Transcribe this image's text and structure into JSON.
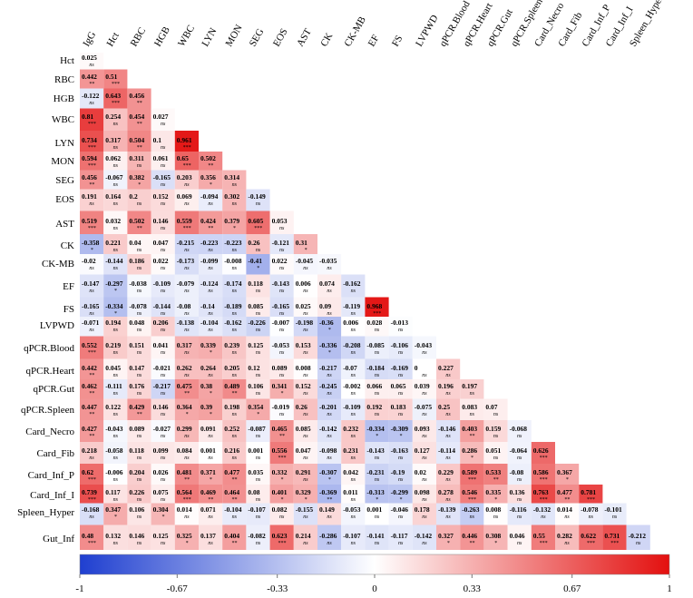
{
  "chart_data": {
    "type": "heatmap",
    "title": "",
    "columns": [
      "IgG",
      "Hct",
      "RBC",
      "HGB",
      "WBC",
      "LYN",
      "MON",
      "SEG",
      "EOS",
      "AST",
      "CK",
      "CK-MB",
      "EF",
      "FS",
      "LVPWD",
      "qPCR.Blood",
      "qPCR.Heart",
      "qPCR.Gut",
      "qPCR.Spleen",
      "Card_Necro",
      "Card_Fib",
      "Card_Inf_P",
      "Card_Inf_I",
      "Spleen_Hyper"
    ],
    "rows": [
      "Hct",
      "RBC",
      "HGB",
      "WBC",
      "LYN",
      "MON",
      "SEG",
      "EOS",
      "AST",
      "CK",
      "CK-MB",
      "EF",
      "FS",
      "LVPWD",
      "qPCR.Blood",
      "qPCR.Heart",
      "qPCR.Gut",
      "qPCR.Spleen",
      "Card_Necro",
      "Card_Fib",
      "Card_Inf_P",
      "Card_Inf_I",
      "Spleen_Hyper",
      "Gut_Inf"
    ],
    "values": [
      [
        0.025
      ],
      [
        0.442,
        0.51
      ],
      [
        -0.122,
        0.643,
        0.456
      ],
      [
        0.81,
        0.254,
        0.454,
        0.027
      ],
      [
        0.734,
        0.317,
        0.504,
        0.1,
        0.961
      ],
      [
        0.594,
        0.062,
        0.311,
        0.061,
        0.65,
        0.502
      ],
      [
        0.456,
        -0.067,
        0.382,
        -0.165,
        0.203,
        0.356,
        0.314
      ],
      [
        0.191,
        0.164,
        0.2,
        0.152,
        0.069,
        -0.094,
        0.302,
        -0.149
      ],
      [
        0.519,
        0.032,
        0.502,
        0.146,
        0.559,
        0.424,
        0.379,
        0.605,
        0.053
      ],
      [
        -0.358,
        0.221,
        0.04,
        0.047,
        -0.215,
        -0.223,
        -0.223,
        0.26,
        -0.121,
        0.31
      ],
      [
        -0.02,
        -0.144,
        0.186,
        0.022,
        -0.173,
        -0.099,
        -0.008,
        -0.41,
        0.022,
        -0.045,
        -0.035
      ],
      [
        -0.147,
        -0.297,
        -0.038,
        -0.109,
        -0.079,
        -0.124,
        -0.174,
        0.118,
        -0.143,
        0.006,
        0.074,
        -0.162
      ],
      [
        -0.165,
        -0.334,
        -0.078,
        -0.144,
        -0.08,
        -0.14,
        -0.189,
        0.085,
        -0.165,
        0.025,
        0.09,
        -0.119,
        0.968
      ],
      [
        -0.071,
        0.194,
        0.048,
        0.206,
        -0.138,
        -0.104,
        -0.162,
        -0.226,
        -0.007,
        -0.198,
        -0.36,
        0.006,
        0.028,
        -0.013
      ],
      [
        0.552,
        0.219,
        0.151,
        0.041,
        0.317,
        0.339,
        0.239,
        0.125,
        -0.053,
        0.153,
        -0.336,
        -0.208,
        -0.085,
        -0.106,
        -0.043
      ],
      [
        0.442,
        0.045,
        0.147,
        -0.021,
        0.262,
        0.264,
        0.205,
        0.12,
        0.089,
        0.008,
        -0.217,
        -0.07,
        -0.184,
        -0.169,
        0,
        0.227
      ],
      [
        0.462,
        -0.111,
        0.176,
        -0.217,
        0.475,
        0.38,
        0.489,
        0.106,
        0.341,
        0.152,
        -0.245,
        -0.002,
        0.066,
        0.065,
        0.039,
        0.196,
        0.197
      ],
      [
        0.447,
        0.122,
        0.429,
        0.146,
        0.364,
        0.39,
        0.198,
        0.354,
        -0.019,
        0.26,
        -0.201,
        -0.109,
        0.192,
        0.183,
        -0.075,
        0.25,
        0.083,
        0.07
      ],
      [
        0.427,
        -0.043,
        0.089,
        -0.027,
        0.299,
        0.091,
        0.252,
        -0.087,
        0.465,
        0.085,
        -0.142,
        0.232,
        -0.334,
        -0.309,
        0.093,
        -0.146,
        0.403,
        0.159,
        -0.068
      ],
      [
        0.218,
        -0.058,
        0.118,
        0.099,
        0.084,
        0.001,
        0.216,
        0.001,
        0.556,
        0.047,
        -0.098,
        0.231,
        -0.143,
        -0.163,
        0.127,
        -0.114,
        0.286,
        0.051,
        -0.064,
        0.626
      ],
      [
        0.62,
        -0.006,
        0.204,
        0.026,
        0.481,
        0.371,
        0.477,
        0.035,
        0.332,
        0.291,
        -0.307,
        0.042,
        -0.231,
        -0.19,
        0.02,
        0.229,
        0.589,
        0.533,
        -0.08,
        0.586,
        0.367
      ],
      [
        0.739,
        0.117,
        0.226,
        0.075,
        0.564,
        0.469,
        0.464,
        0.08,
        0.401,
        0.329,
        -0.369,
        0.011,
        -0.313,
        -0.299,
        0.098,
        0.278,
        0.546,
        0.335,
        0.136,
        0.763,
        0.477,
        0.781
      ],
      [
        -0.168,
        0.347,
        0.106,
        0.304,
        0.014,
        0.071,
        -0.104,
        -0.107,
        0.082,
        -0.155,
        0.149,
        -0.053,
        0.001,
        -0.046,
        0.178,
        -0.139,
        -0.263,
        0.008,
        -0.116,
        -0.132,
        0.014,
        -0.078,
        -0.101
      ],
      [
        0.48,
        0.132,
        0.146,
        0.125,
        0.325,
        0.137,
        0.404,
        -0.082,
        0.623,
        0.214,
        -0.286,
        -0.107,
        -0.141,
        -0.117,
        -0.142,
        0.327,
        0.446,
        0.308,
        0.046,
        0.55,
        0.282,
        0.622,
        0.731,
        -0.212
      ]
    ],
    "significance": [
      [
        "ns"
      ],
      [
        "**",
        "***"
      ],
      [
        "ns",
        "***",
        "**"
      ],
      [
        "***",
        "ns",
        "**",
        "ns"
      ],
      [
        "***",
        "ns",
        "**",
        "ns",
        "***"
      ],
      [
        "***",
        "ns",
        "ns",
        "ns",
        "***",
        "**"
      ],
      [
        "**",
        "ns",
        "*",
        "ns",
        "ns",
        "*",
        "ns"
      ],
      [
        "ns",
        "ns",
        "ns",
        "ns",
        "ns",
        "ns",
        "ns",
        "ns"
      ],
      [
        "***",
        "ns",
        "**",
        "ns",
        "***",
        "**",
        "*",
        "***",
        "ns"
      ],
      [
        "*",
        "ns",
        "ns",
        "ns",
        "ns",
        "ns",
        "ns",
        "ns",
        "ns",
        "*"
      ],
      [
        "ns",
        "ns",
        "ns",
        "ns",
        "ns",
        "ns",
        "ns",
        "*",
        "ns",
        "ns",
        "ns"
      ],
      [
        "ns",
        "*",
        "ns",
        "ns",
        "ns",
        "ns",
        "ns",
        "ns",
        "ns",
        "ns",
        "ns",
        "ns"
      ],
      [
        "ns",
        "*",
        "ns",
        "ns",
        "ns",
        "ns",
        "ns",
        "ns",
        "ns",
        "ns",
        "ns",
        "ns",
        "***"
      ],
      [
        "ns",
        "ns",
        "ns",
        "ns",
        "ns",
        "ns",
        "ns",
        "ns",
        "ns",
        "ns",
        "*",
        "ns",
        "ns",
        "ns"
      ],
      [
        "***",
        "ns",
        "ns",
        "ns",
        "ns",
        "*",
        "ns",
        "ns",
        "ns",
        "ns",
        "*",
        "ns",
        "ns",
        "ns",
        "ns"
      ],
      [
        "**",
        "ns",
        "ns",
        "ns",
        "ns",
        "ns",
        "ns",
        "ns",
        "ns",
        "ns",
        "ns",
        "ns",
        "ns",
        "ns",
        "ns",
        "ns"
      ],
      [
        "**",
        "ns",
        "ns",
        "ns",
        "**",
        "*",
        "**",
        "ns",
        "*",
        "ns",
        "ns",
        "ns",
        "ns",
        "ns",
        "ns",
        "ns",
        "ns"
      ],
      [
        "**",
        "ns",
        "**",
        "ns",
        "*",
        "*",
        "ns",
        "*",
        "ns",
        "ns",
        "ns",
        "ns",
        "ns",
        "ns",
        "ns",
        "ns",
        "ns",
        "ns"
      ],
      [
        "**",
        "ns",
        "ns",
        "ns",
        "ns",
        "ns",
        "ns",
        "ns",
        "**",
        "ns",
        "ns",
        "ns",
        "*",
        "*",
        "ns",
        "ns",
        "**",
        "ns",
        "ns"
      ],
      [
        "ns",
        "ns",
        "ns",
        "ns",
        "ns",
        "ns",
        "ns",
        "ns",
        "***",
        "ns",
        "ns",
        "ns",
        "ns",
        "ns",
        "ns",
        "ns",
        "*",
        "ns",
        "ns",
        "***"
      ],
      [
        "***",
        "ns",
        "ns",
        "ns",
        "**",
        "*",
        "**",
        "ns",
        "*",
        "ns",
        "*",
        "ns",
        "ns",
        "ns",
        "ns",
        "ns",
        "***",
        "**",
        "ns",
        "***",
        "*"
      ],
      [
        "***",
        "ns",
        "ns",
        "ns",
        "***",
        "**",
        "**",
        "ns",
        "*",
        "*",
        "**",
        "ns",
        "*",
        "*",
        "ns",
        "ns",
        "***",
        "*",
        "ns",
        "***",
        "**",
        "***"
      ],
      [
        "ns",
        "*",
        "ns",
        "*",
        "ns",
        "ns",
        "ns",
        "ns",
        "ns",
        "ns",
        "ns",
        "ns",
        "ns",
        "ns",
        "ns",
        "ns",
        "ns",
        "ns",
        "ns",
        "ns",
        "ns",
        "ns",
        "ns"
      ],
      [
        "***",
        "ns",
        "ns",
        "ns",
        "*",
        "ns",
        "**",
        "ns",
        "***",
        "ns",
        "ns",
        "ns",
        "ns",
        "ns",
        "ns",
        "*",
        "**",
        "*",
        "ns",
        "***",
        "ns",
        "***",
        "***",
        "ns"
      ]
    ],
    "colorbar": {
      "range": [
        -1,
        1
      ],
      "ticks": [
        "-1",
        "-0.67",
        "-0.33",
        "0",
        "0.33",
        "0.67",
        "1"
      ],
      "colors": {
        "negative": "#1f3fd0",
        "zero": "#ffffff",
        "positive": "#e3100f"
      }
    }
  }
}
